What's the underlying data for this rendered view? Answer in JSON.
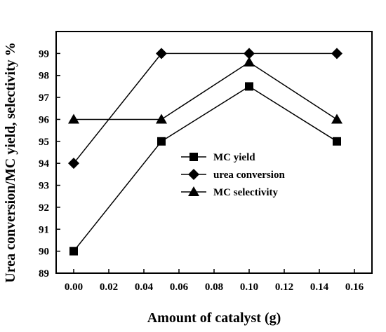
{
  "chart_data": {
    "type": "line",
    "title": "",
    "xlabel": "Amount of catalyst (g)",
    "ylabel": "Urea conversion/MC yield, selectivity %",
    "xlim": [
      -0.01,
      0.17
    ],
    "ylim": [
      89,
      100
    ],
    "x_ticks": [
      "0.00",
      "0.02",
      "0.04",
      "0.06",
      "0.08",
      "0.10",
      "0.12",
      "0.14",
      "0.16"
    ],
    "y_ticks": [
      "89",
      "90",
      "91",
      "92",
      "93",
      "94",
      "95",
      "96",
      "97",
      "98",
      "99"
    ],
    "grid": false,
    "legend_position": "center-right",
    "series": [
      {
        "name": "MC yield",
        "marker": "square",
        "x": [
          0.0,
          0.05,
          0.1,
          0.15
        ],
        "y": [
          90,
          95,
          97.5,
          95
        ]
      },
      {
        "name": "urea conversion",
        "marker": "diamond",
        "x": [
          0.0,
          0.05,
          0.1,
          0.15
        ],
        "y": [
          94,
          99,
          99,
          99
        ]
      },
      {
        "name": "MC selectivity",
        "marker": "triangle",
        "x": [
          0.0,
          0.05,
          0.1,
          0.15
        ],
        "y": [
          96,
          96,
          98.6,
          96
        ]
      }
    ]
  }
}
